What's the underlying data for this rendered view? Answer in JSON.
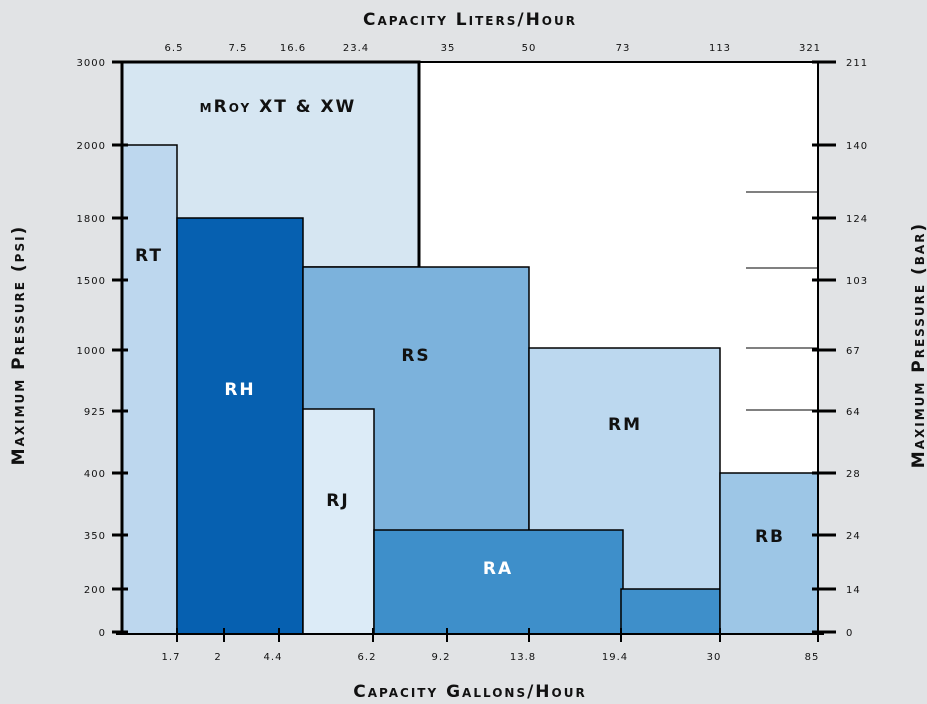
{
  "chart_data": {
    "type": "bar",
    "title": "Capacity Liters/Hour",
    "xlabel": "Capacity Gallons/Hour",
    "ylabel_left": "Maximum Pressure (psi)",
    "ylabel_right": "Maximum Pressure (bar)",
    "x_bottom_ticks": [
      "1.7",
      "2",
      "4.4",
      "6.2",
      "9.2",
      "13.8",
      "19.4",
      "30",
      "85"
    ],
    "x_top_ticks": [
      "6.5",
      "7.5",
      "16.6",
      "23.4",
      "35",
      "50",
      "73",
      "113",
      "321"
    ],
    "y_left_ticks": [
      "3000",
      "2000",
      "1800",
      "1500",
      "1000",
      "925",
      "400",
      "350",
      "200",
      "0"
    ],
    "y_right_ticks": [
      "211",
      "140",
      "124",
      "103",
      "67",
      "64",
      "28",
      "24",
      "14",
      "0"
    ],
    "regions": [
      {
        "name": "mRoy XT & XW",
        "gph_range": [
          "0",
          "6.2–9.2"
        ],
        "max_psi": 3000
      },
      {
        "name": "RT",
        "gph_range": [
          "0",
          "1.7"
        ],
        "max_psi": 2000
      },
      {
        "name": "RH",
        "gph_range": [
          "1.7",
          "4.4"
        ],
        "max_psi": 1800
      },
      {
        "name": "RS",
        "gph_range": [
          "4.4",
          "13.8"
        ],
        "max_psi": 1500
      },
      {
        "name": "RJ",
        "gph_range": [
          "4.4",
          "6.2"
        ],
        "max_psi": 925
      },
      {
        "name": "RM",
        "gph_range": [
          "13.8",
          "30"
        ],
        "max_psi": 1000
      },
      {
        "name": "RA",
        "gph_range": [
          "6.2",
          "19.4"
        ],
        "max_psi": 350
      },
      {
        "name": "RB",
        "gph_range": [
          "30",
          "85"
        ],
        "max_psi": 400
      }
    ],
    "colors": {
      "mroy": "#d6e6f2",
      "rt": "#bdd7ee",
      "rh": "#0660b0",
      "rs": "#7cb2dc",
      "rj": "#dcebf7",
      "rm": "#bcd8ef",
      "ra": "#3e8fca",
      "rb": "#9dc6e6"
    }
  }
}
